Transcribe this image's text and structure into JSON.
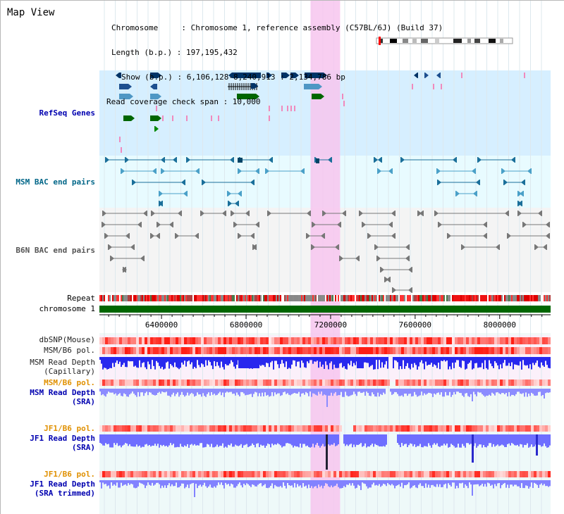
{
  "view_title": "Map View",
  "header": {
    "chromosome": "Chromosome     : Chromosome 1, reference assembly (C57BL/6J) (Build 37)",
    "length": "Length (b.p.) : 197,195,432",
    "show": "Show (b.p.) : 6,106,128-8,240,913 : 2,134,786 bp",
    "read_coverage": "Read coverage check span : 10,000"
  },
  "tracks": {
    "refseq": "RefSeq Genes",
    "msm_bac": "MSM BAC end pairs",
    "b6n_bac": "B6N BAC end pairs",
    "repeat": "Repeat",
    "chromosome": "chromosome 1",
    "dbsnp": "dbSNP(Mouse)",
    "msm_b6_pol": "MSM/B6 pol.",
    "msm_depth_cap_1": "MSM Read Depth",
    "msm_depth_cap_2": "(Capillary)",
    "msm_b6_pol_sra": "MSM/B6 pol.",
    "msm_depth_sra_1": "MSM Read Depth",
    "msm_depth_sra_2": "(SRA)",
    "jf1_pol": "JF1/B6 pol.",
    "jf1_depth_1": "JF1 Read Depth",
    "jf1_depth_2": "(SRA)",
    "jf1_pol_trim": "JF1/B6 pol.",
    "jf1_trim_1": "JF1 Read Depth",
    "jf1_trim_2": "(SRA trimmed)"
  },
  "axis": {
    "start_bp": 6106128,
    "end_bp": 8240913,
    "ticks": [
      "6400000",
      "6800000",
      "7200000",
      "7600000",
      "8000000"
    ],
    "tick_values": [
      6400000,
      6800000,
      7200000,
      7600000,
      8000000
    ]
  },
  "highlight_region_bp": [
    7105000,
    7245000
  ],
  "colors": {
    "refseq_bg": "#d6efff",
    "msm_bac_bg": "#e8fbff",
    "b6n_bg": "#f4f4f4",
    "read_depth_blue": "#3a3aff",
    "polymorphism_red": "#ff3030",
    "chromosome_green": "#006600",
    "highlight_pink": "#f7c6ef",
    "label_blue": "#0000b0",
    "label_teal": "#006688",
    "label_orange": "#e09000",
    "label_gray": "#555555"
  }
}
